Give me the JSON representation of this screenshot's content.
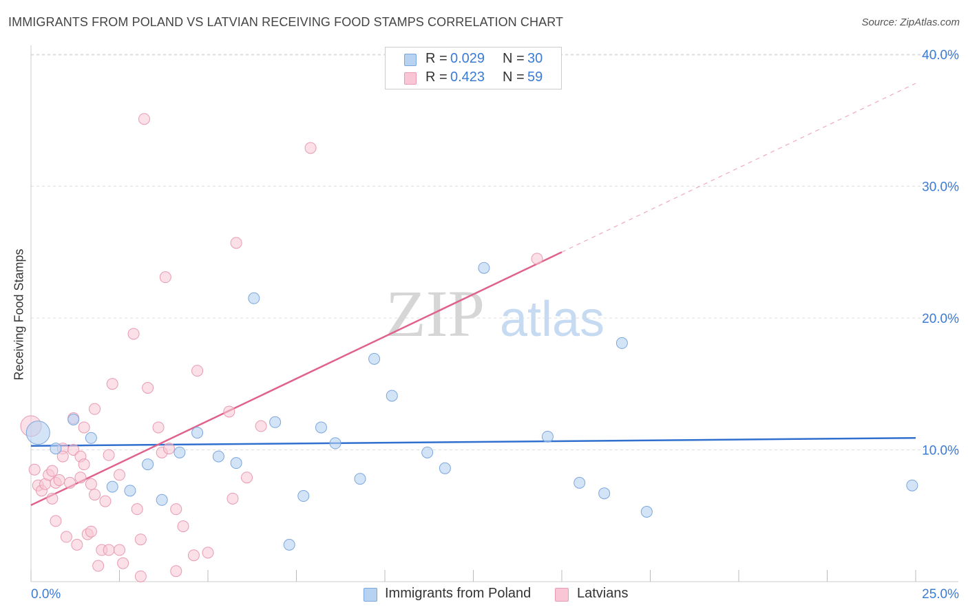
{
  "title": "IMMIGRANTS FROM POLAND VS LATVIAN RECEIVING FOOD STAMPS CORRELATION CHART",
  "source": "Source: ZipAtlas.com",
  "watermark": {
    "zip": "ZIP",
    "atlas": "atlas"
  },
  "legend": {
    "rows": [
      {
        "r_label": "R =",
        "r_value": "0.029",
        "n_label": "N =",
        "n_value": "30"
      },
      {
        "r_label": "R =",
        "r_value": "0.423",
        "n_label": "N =",
        "n_value": "59"
      }
    ]
  },
  "bottom_legend": [
    "Immigrants from Poland",
    "Latvians"
  ],
  "colors": {
    "poland_fill": "#b8d2f2",
    "poland_stroke": "#7aa6dd",
    "poland_line": "#2f6fce",
    "latvian_fill": "#f8c6d4",
    "latvian_stroke": "#e89ab2",
    "latvian_line": "#e0628a",
    "tick_label": "#3a7bd5",
    "grid": "#dddddd"
  },
  "chart_data": {
    "type": "scatter",
    "title": "IMMIGRANTS FROM POLAND VS LATVIAN RECEIVING FOOD STAMPS CORRELATION CHART",
    "xlabel": "",
    "ylabel": "Receiving Food Stamps",
    "xlim": [
      0,
      25
    ],
    "ylim": [
      0,
      40
    ],
    "x_tick_labels": [
      "0.0%",
      "25.0%"
    ],
    "y_tick_labels": [
      "10.0%",
      "20.0%",
      "30.0%",
      "40.0%"
    ],
    "y_ticks": [
      10,
      20,
      30,
      40
    ],
    "grid": true,
    "legend_position": "top-center",
    "series": [
      {
        "name": "Immigrants from Poland",
        "points": [
          [
            0.2,
            11.3
          ],
          [
            1.2,
            12.3
          ],
          [
            1.7,
            10.9
          ],
          [
            0.7,
            10.1
          ],
          [
            2.3,
            7.2
          ],
          [
            2.8,
            6.9
          ],
          [
            3.3,
            8.9
          ],
          [
            3.7,
            6.2
          ],
          [
            4.2,
            9.8
          ],
          [
            4.7,
            11.3
          ],
          [
            5.3,
            9.5
          ],
          [
            5.8,
            9.0
          ],
          [
            6.3,
            21.5
          ],
          [
            6.9,
            12.1
          ],
          [
            7.3,
            2.8
          ],
          [
            7.7,
            6.5
          ],
          [
            8.2,
            11.7
          ],
          [
            8.6,
            10.5
          ],
          [
            9.3,
            7.8
          ],
          [
            9.7,
            16.9
          ],
          [
            10.2,
            14.1
          ],
          [
            11.2,
            9.8
          ],
          [
            11.7,
            8.6
          ],
          [
            12.8,
            23.8
          ],
          [
            14.6,
            11.0
          ],
          [
            15.5,
            7.5
          ],
          [
            16.2,
            6.7
          ],
          [
            16.7,
            18.1
          ],
          [
            17.4,
            5.3
          ],
          [
            24.9,
            7.3
          ]
        ],
        "trend": {
          "x": [
            0,
            25
          ],
          "y": [
            10.3,
            10.9
          ]
        }
      },
      {
        "name": "Latvians",
        "points": [
          [
            0.0,
            11.8
          ],
          [
            0.1,
            8.5
          ],
          [
            0.2,
            7.3
          ],
          [
            0.3,
            6.9
          ],
          [
            0.4,
            7.4
          ],
          [
            0.5,
            8.1
          ],
          [
            0.6,
            8.4
          ],
          [
            0.6,
            6.3
          ],
          [
            0.7,
            7.5
          ],
          [
            0.7,
            4.6
          ],
          [
            0.8,
            7.7
          ],
          [
            0.9,
            10.1
          ],
          [
            0.9,
            9.5
          ],
          [
            1.0,
            3.4
          ],
          [
            1.1,
            7.5
          ],
          [
            1.2,
            12.4
          ],
          [
            1.2,
            10.0
          ],
          [
            1.3,
            2.8
          ],
          [
            1.4,
            9.5
          ],
          [
            1.4,
            7.9
          ],
          [
            1.5,
            8.9
          ],
          [
            1.5,
            11.7
          ],
          [
            1.6,
            3.6
          ],
          [
            1.7,
            3.8
          ],
          [
            1.7,
            7.4
          ],
          [
            1.8,
            13.1
          ],
          [
            1.8,
            6.6
          ],
          [
            1.9,
            1.2
          ],
          [
            2.0,
            2.4
          ],
          [
            2.1,
            6.1
          ],
          [
            2.2,
            9.6
          ],
          [
            2.2,
            2.4
          ],
          [
            2.3,
            15.0
          ],
          [
            2.5,
            8.1
          ],
          [
            2.5,
            2.4
          ],
          [
            2.6,
            1.4
          ],
          [
            2.9,
            18.8
          ],
          [
            3.0,
            5.5
          ],
          [
            3.1,
            3.2
          ],
          [
            3.1,
            0.4
          ],
          [
            3.2,
            35.1
          ],
          [
            3.3,
            14.7
          ],
          [
            3.6,
            11.7
          ],
          [
            3.7,
            9.8
          ],
          [
            3.8,
            23.1
          ],
          [
            3.9,
            10.1
          ],
          [
            4.1,
            5.5
          ],
          [
            4.1,
            0.8
          ],
          [
            4.3,
            4.2
          ],
          [
            4.6,
            2.0
          ],
          [
            4.7,
            16.0
          ],
          [
            5.0,
            2.2
          ],
          [
            5.6,
            12.9
          ],
          [
            5.7,
            6.3
          ],
          [
            5.8,
            25.7
          ],
          [
            6.1,
            7.9
          ],
          [
            6.5,
            11.8
          ],
          [
            7.9,
            32.9
          ],
          [
            14.3,
            24.5
          ]
        ],
        "trend": {
          "x": [
            0,
            15
          ],
          "y": [
            5.8,
            25.0
          ]
        },
        "trend_extension": {
          "x": [
            15,
            25
          ],
          "y": [
            25.0,
            37.8
          ]
        }
      }
    ]
  }
}
